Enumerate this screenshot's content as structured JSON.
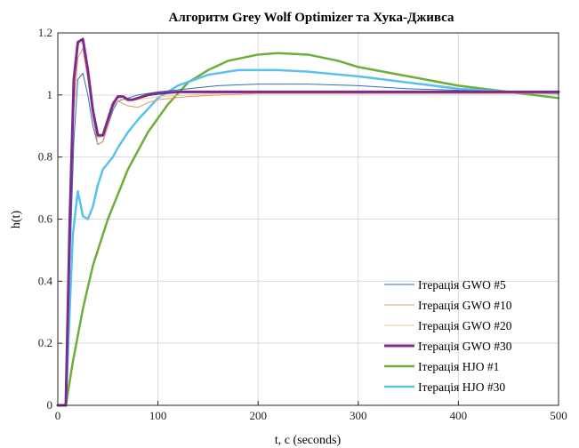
{
  "chart_data": {
    "type": "line",
    "title": "Алгоритм Grey Wolf Optimizer та Хука-Дживса",
    "xlabel": "t, c (seconds)",
    "ylabel": "h(t)",
    "xlim": [
      0,
      500
    ],
    "ylim": [
      0,
      1.2
    ],
    "xticks": [
      0,
      100,
      200,
      300,
      400,
      500
    ],
    "yticks": [
      0,
      0.2,
      0.4,
      0.6,
      0.8,
      1,
      1.2
    ],
    "xtick_labels": [
      "0",
      "100",
      "200",
      "300",
      "400",
      "500"
    ],
    "ytick_labels": [
      "0",
      "0.2",
      "0.4",
      "0.6",
      "0.8",
      "1",
      "1.2"
    ],
    "grid": true,
    "legend_position": "bottom-right",
    "series": [
      {
        "name": "Ітерація GWO #5",
        "color": "#2f6fb5",
        "width": 1,
        "x": [
          0,
          8,
          12,
          16,
          20,
          25,
          30,
          35,
          40,
          45,
          50,
          55,
          60,
          70,
          80,
          100,
          130,
          160,
          200,
          250,
          300,
          350,
          400,
          450,
          500
        ],
        "y": [
          0,
          0,
          0.45,
          0.85,
          1.05,
          1.07,
          1.0,
          0.9,
          0.84,
          0.85,
          0.9,
          0.95,
          0.98,
          0.99,
          1.0,
          1.01,
          1.02,
          1.03,
          1.035,
          1.035,
          1.03,
          1.02,
          1.015,
          1.01,
          1.01
        ]
      },
      {
        "name": "Ітерація GWO #10",
        "color": "#e8906a",
        "width": 1,
        "x": [
          0,
          8,
          12,
          16,
          20,
          25,
          30,
          35,
          40,
          45,
          50,
          55,
          60,
          70,
          80,
          90,
          100,
          130,
          160,
          200,
          250,
          300,
          350,
          400,
          450,
          500
        ],
        "y": [
          0,
          0,
          0.5,
          0.95,
          1.12,
          1.15,
          1.05,
          0.93,
          0.84,
          0.85,
          0.9,
          0.96,
          0.98,
          0.965,
          0.96,
          0.975,
          0.985,
          0.995,
          1.0,
          1.005,
          1.005,
          1.005,
          1.005,
          1.005,
          1.005,
          1.005
        ]
      },
      {
        "name": "Ітерація GWO #20",
        "color": "#f2c78a",
        "width": 1,
        "x": [
          0,
          8,
          12,
          16,
          20,
          25,
          30,
          35,
          40,
          45,
          50,
          55,
          60,
          70,
          80,
          100,
          130,
          160,
          200,
          300,
          400,
          500
        ],
        "y": [
          0,
          0,
          0.55,
          1.0,
          1.16,
          1.17,
          1.06,
          0.94,
          0.86,
          0.87,
          0.93,
          0.98,
          0.99,
          0.98,
          0.985,
          0.995,
          1.0,
          1.005,
          1.008,
          1.01,
          1.01,
          1.01
        ]
      },
      {
        "name": "Ітерація GWO #30",
        "color": "#7b2d8e",
        "width": 3,
        "x": [
          0,
          8,
          12,
          16,
          20,
          25,
          30,
          35,
          40,
          45,
          50,
          55,
          60,
          65,
          70,
          75,
          80,
          90,
          100,
          120,
          150,
          200,
          300,
          400,
          500
        ],
        "y": [
          0,
          0,
          0.6,
          1.05,
          1.17,
          1.18,
          1.08,
          0.95,
          0.87,
          0.87,
          0.92,
          0.97,
          0.995,
          0.995,
          0.985,
          0.985,
          0.99,
          1.0,
          1.005,
          1.01,
          1.01,
          1.01,
          1.01,
          1.01,
          1.01
        ]
      },
      {
        "name": "Ітерація HJO #1",
        "color": "#6fad3a",
        "width": 2.5,
        "x": [
          0,
          8,
          15,
          25,
          35,
          50,
          70,
          90,
          110,
          130,
          150,
          170,
          200,
          220,
          250,
          280,
          300,
          350,
          400,
          450,
          500
        ],
        "y": [
          0,
          0,
          0.14,
          0.31,
          0.45,
          0.6,
          0.76,
          0.88,
          0.97,
          1.04,
          1.08,
          1.11,
          1.13,
          1.135,
          1.13,
          1.11,
          1.09,
          1.06,
          1.03,
          1.01,
          0.99
        ]
      },
      {
        "name": "Ітерація HJO #30",
        "color": "#59c1ec",
        "width": 2.5,
        "x": [
          0,
          8,
          15,
          20,
          25,
          30,
          35,
          40,
          45,
          50,
          55,
          60,
          70,
          80,
          100,
          120,
          150,
          180,
          200,
          220,
          250,
          300,
          350,
          400,
          450,
          500
        ],
        "y": [
          0,
          0,
          0.55,
          0.69,
          0.61,
          0.6,
          0.64,
          0.71,
          0.76,
          0.78,
          0.8,
          0.83,
          0.88,
          0.92,
          0.99,
          1.03,
          1.065,
          1.08,
          1.08,
          1.08,
          1.075,
          1.06,
          1.04,
          1.02,
          1.01,
          1.005
        ]
      }
    ]
  }
}
